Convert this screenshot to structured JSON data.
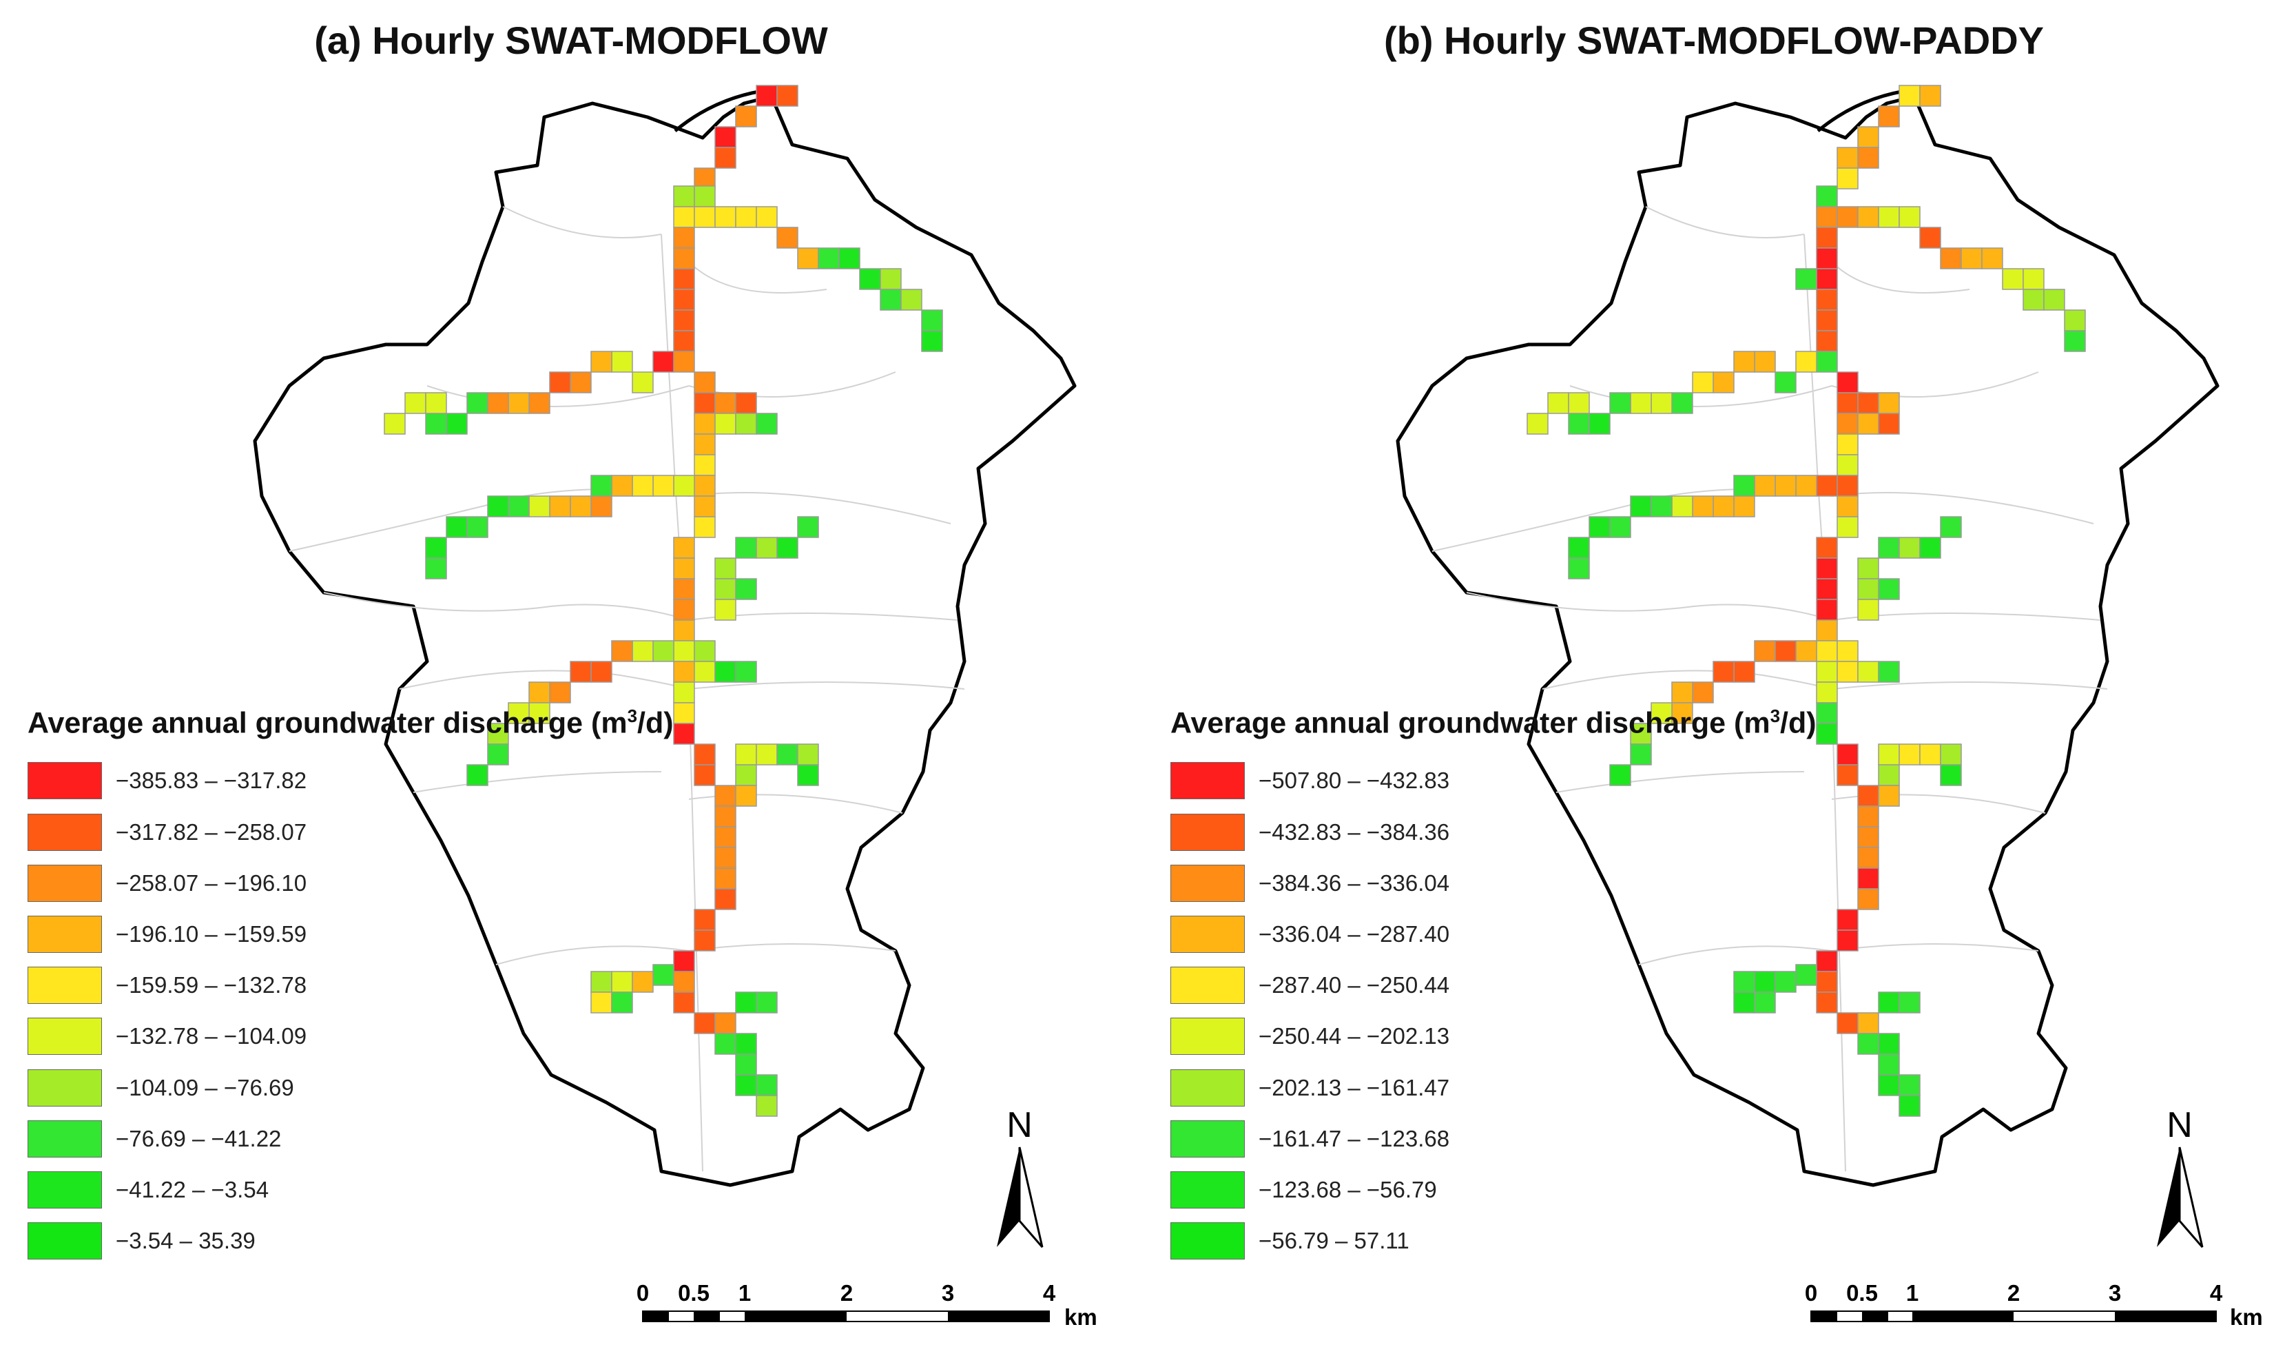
{
  "panels": [
    {
      "title": "(a) Hourly SWAT-MODFLOW",
      "legend_title_main": "Average annual groundwater discharge (m",
      "legend_title_sup": "3",
      "legend_title_end": "/d)",
      "legend": [
        {
          "label": "−385.83 – −317.82",
          "color": "#ff1e1e"
        },
        {
          "label": "−317.82 – −258.07",
          "color": "#ff5a14"
        },
        {
          "label": "−258.07 – −196.10",
          "color": "#ff8c14"
        },
        {
          "label": "−196.10 – −159.59",
          "color": "#ffb414"
        },
        {
          "label": "−159.59 – −132.78",
          "color": "#ffe61e"
        },
        {
          "label": "−132.78 – −104.09",
          "color": "#dcf51e"
        },
        {
          "label": "−104.09 – −76.69",
          "color": "#a5eb28"
        },
        {
          "label": "−76.69 – −41.22",
          "color": "#32e632"
        },
        {
          "label": "−41.22 – −3.54",
          "color": "#1ee61e"
        },
        {
          "label": "−3.54 – 35.39",
          "color": "#14e614"
        }
      ]
    },
    {
      "title": "(b) Hourly SWAT-MODFLOW-PADDY",
      "legend_title_main": "Average annual groundwater discharge (m",
      "legend_title_sup": "3",
      "legend_title_end": "/d)",
      "legend": [
        {
          "label": "−507.80 – −432.83",
          "color": "#ff1e1e"
        },
        {
          "label": "−432.83 – −384.36",
          "color": "#ff5a14"
        },
        {
          "label": "−384.36 – −336.04",
          "color": "#ff8c14"
        },
        {
          "label": "−336.04 – −287.40",
          "color": "#ffb414"
        },
        {
          "label": "−287.40 – −250.44",
          "color": "#ffe61e"
        },
        {
          "label": "−250.44 – −202.13",
          "color": "#dcf51e"
        },
        {
          "label": "−202.13 – −161.47",
          "color": "#a5eb28"
        },
        {
          "label": "−161.47 – −123.68",
          "color": "#32e632"
        },
        {
          "label": "−123.68 – −56.79",
          "color": "#1ee61e"
        },
        {
          "label": "−56.79 – 57.11",
          "color": "#14e614"
        }
      ]
    }
  ],
  "north_arrow_label": "N",
  "scale_bar": {
    "ticks": [
      "0",
      "0.5",
      "1",
      "2",
      "3",
      "4"
    ],
    "unit": "km"
  },
  "colors": {
    "boundary": "#000000",
    "subbasin_lines": "#cfcfcf",
    "cell_outline": "#9a9a9a"
  }
}
